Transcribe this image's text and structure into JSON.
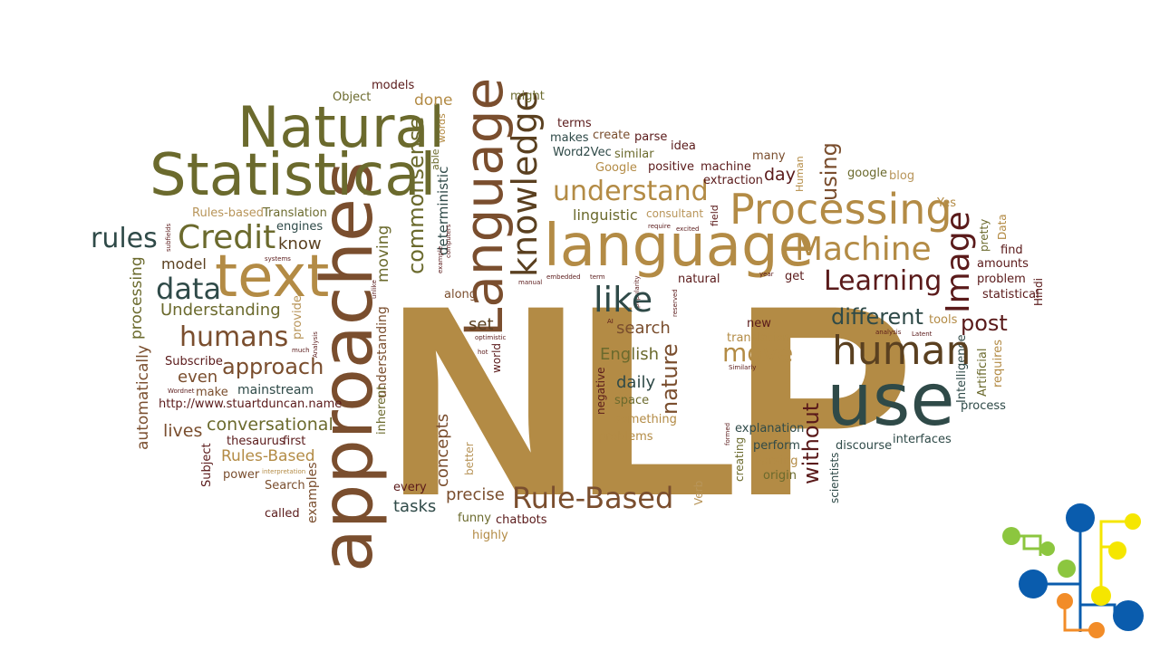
{
  "colors": {
    "gold": "#b38b45",
    "olive": "#6b6a2d",
    "brown": "#7a4e2e",
    "slate": "#2f4a48",
    "maroon": "#5a1a1a",
    "tan": "#b8955a",
    "logo_blue": "#0a5cad",
    "logo_green": "#8cc63f",
    "logo_yellow": "#f5e600",
    "logo_orange": "#f28c28"
  },
  "words": {
    "nlp": "NLP",
    "approaches": "approaches",
    "language_lower": "language",
    "language_title": "Language",
    "natural_title": "Natural",
    "statistical_title": "Statistical",
    "text": "text",
    "use": "use",
    "human": "human",
    "processing_title": "Processing",
    "machine_title": "Machine",
    "learning": "Learning",
    "understand": "understand",
    "credit": "Credit",
    "rules": "rules",
    "data": "data",
    "humans": "humans",
    "approach": "approach",
    "rule_based": "Rule-Based",
    "like": "like",
    "image": "Image",
    "different": "different",
    "post": "post",
    "move": "move",
    "knowledge": "knowledge",
    "commonsense": "commonsense",
    "deterministic": "deterministic",
    "conversational": "conversational",
    "understanding_title": "Understanding",
    "model": "model",
    "know": "know",
    "rules_based_lower": "Rules-based",
    "translation_title": "Translation",
    "engines": "engines",
    "models": "models",
    "object": "Object",
    "done": "done",
    "might": "might",
    "terms": "terms",
    "create": "create",
    "parse": "parse",
    "makes": "makes",
    "idea": "idea",
    "word2vec": "Word2Vec",
    "similar": "similar",
    "google_title": "Google",
    "positive": "positive",
    "machine_lower": "machine",
    "many": "many",
    "extraction": "extraction",
    "day": "day",
    "using": "using",
    "google_lower": "google",
    "blog": "blog",
    "linguistic": "linguistic",
    "consultant": "consultant",
    "yes": "Yes",
    "data_title": "Data",
    "pretty": "pretty",
    "find": "find",
    "amounts": "amounts",
    "problem": "problem",
    "statistical_lower": "statistical",
    "hindi": "Hindi",
    "get": "get",
    "natural_lower": "natural",
    "tools": "tools",
    "requires": "requires",
    "artificial": "Artificial",
    "intelligence": "Intelligence",
    "process": "process",
    "interfaces": "interfaces",
    "discourse": "discourse",
    "scientists": "scientists",
    "without": "without",
    "explanation": "explanation",
    "perform": "perform",
    "parsing": "Parsing",
    "origin": "origin",
    "creating": "creating",
    "verb": "Verb",
    "new": "new",
    "translation_lower": "translation",
    "similarly": "Similarly",
    "english": "English",
    "search_lower": "search",
    "nature": "nature",
    "daily": "daily",
    "space": "space",
    "something": "something",
    "problems": "problems",
    "negative": "negative",
    "set": "set",
    "along": "along",
    "world": "world",
    "concepts": "concepts",
    "better": "better",
    "precise": "precise",
    "every": "every",
    "tasks": "tasks",
    "funny": "funny",
    "chatbots": "chatbots",
    "highly": "highly",
    "moving": "moving",
    "able": "able",
    "words": "words",
    "inherent": "inherent",
    "understanding_lower": "understanding",
    "provide": "provide",
    "automatically": "automatically",
    "processing_lower": "processing",
    "subscribe": "Subscribe",
    "even": "even",
    "make": "make",
    "mainstream": "mainstream",
    "url": "http://www.stuartduncan.name",
    "lives": "lives",
    "thesaurus": "thesaurus",
    "first": "first",
    "rules_based_title": "Rules-Based",
    "power": "power",
    "search_title": "Search",
    "called": "called",
    "examples": "examples",
    "subject": "Subject",
    "wordnet": "Wordnet",
    "interpretation": "interpretation",
    "subfields": "subfields",
    "computers": "computers",
    "systems": "systems",
    "example": "example",
    "unlike": "unlike",
    "much": "much",
    "analysis_title": "Analysis",
    "hot": "hot",
    "optimistic": "optimistic",
    "ai": "AI",
    "popularity": "popularity",
    "reserved": "reserved",
    "embedded": "embedded",
    "term": "term",
    "manual": "manual",
    "require": "require",
    "excited": "excited",
    "field": "field",
    "year": "year",
    "human_title": "Human",
    "latent": "Latent",
    "analysis_lower": "analysis",
    "formed": "formed"
  }
}
